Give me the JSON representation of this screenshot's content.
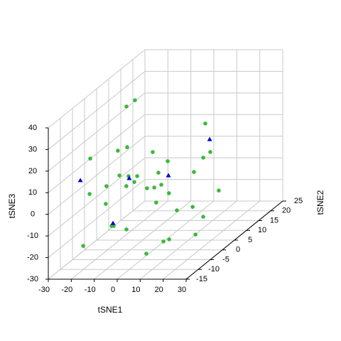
{
  "chart_data": {
    "type": "scatter3d",
    "xlabel": "tSNE1",
    "ylabel": "tSNE2",
    "zlabel": "tSNE3",
    "xlim": [
      -30,
      30
    ],
    "ylim": [
      -15,
      25
    ],
    "zlim": [
      -30,
      40
    ],
    "xticks": [
      -30,
      -20,
      -10,
      0,
      10,
      20,
      30
    ],
    "yticks": [
      -15,
      -10,
      -5,
      0,
      5,
      10,
      15,
      20,
      25
    ],
    "zticks": [
      -30,
      -20,
      -10,
      0,
      10,
      20,
      30,
      40
    ],
    "grid": true,
    "series": [
      {
        "color": "#3cb83c",
        "marker": "circle",
        "x": [
          -17,
          -13.3,
          -17,
          -15.5,
          -16.7,
          -14.8,
          -15.2,
          -17.3,
          -16.1,
          -13.6,
          -11.8,
          -17.6,
          -16.1,
          -3.1,
          -4.3,
          -2.8,
          -4.9,
          -7.1,
          1.5,
          1.2,
          10.2,
          11.8,
          6.8,
          3.7,
          5.9,
          7.1,
          7.4,
          16.4,
          -15.5,
          -7.7,
          -6.8,
          -6.5,
          -14.8,
          7.4,
          9.6,
          12.1,
          18.3
        ],
        "y": [
          5,
          5,
          -10,
          0,
          5,
          0,
          -5,
          -10,
          5,
          5,
          0,
          10,
          15,
          5,
          10,
          0,
          5,
          10,
          5,
          0,
          0,
          5,
          15,
          20,
          15,
          10,
          20,
          5,
          -5,
          -10,
          -10,
          -5,
          -15,
          -10,
          -5,
          -5,
          0
        ],
        "z": [
          31.8,
          34.7,
          21.3,
          15.9,
          13,
          4.4,
          4,
          4.9,
          -0.4,
          -3.1,
          -0.5,
          -4.9,
          1.7,
          1.2,
          2,
          -1.5,
          -5.7,
          -8.9,
          -8.3,
          -8.1,
          -11.7,
          -14.6,
          14.9,
          -2.8,
          -0.9,
          -3,
          -20.6,
          -19.2,
          -4.2,
          -9.9,
          -9.9,
          -16,
          -14.6,
          -22.7,
          -21.6,
          -20.6,
          -22.9
        ]
      },
      {
        "color": "#0000cc",
        "marker": "triangle",
        "x": [
          -21.3,
          -15.8,
          -4,
          8.7,
          -7.1
        ],
        "y": [
          -10,
          5,
          10,
          15,
          -10
        ],
        "z": [
          11.2,
          -1.4,
          -4.6,
          7.6,
          -8.6
        ]
      }
    ]
  }
}
